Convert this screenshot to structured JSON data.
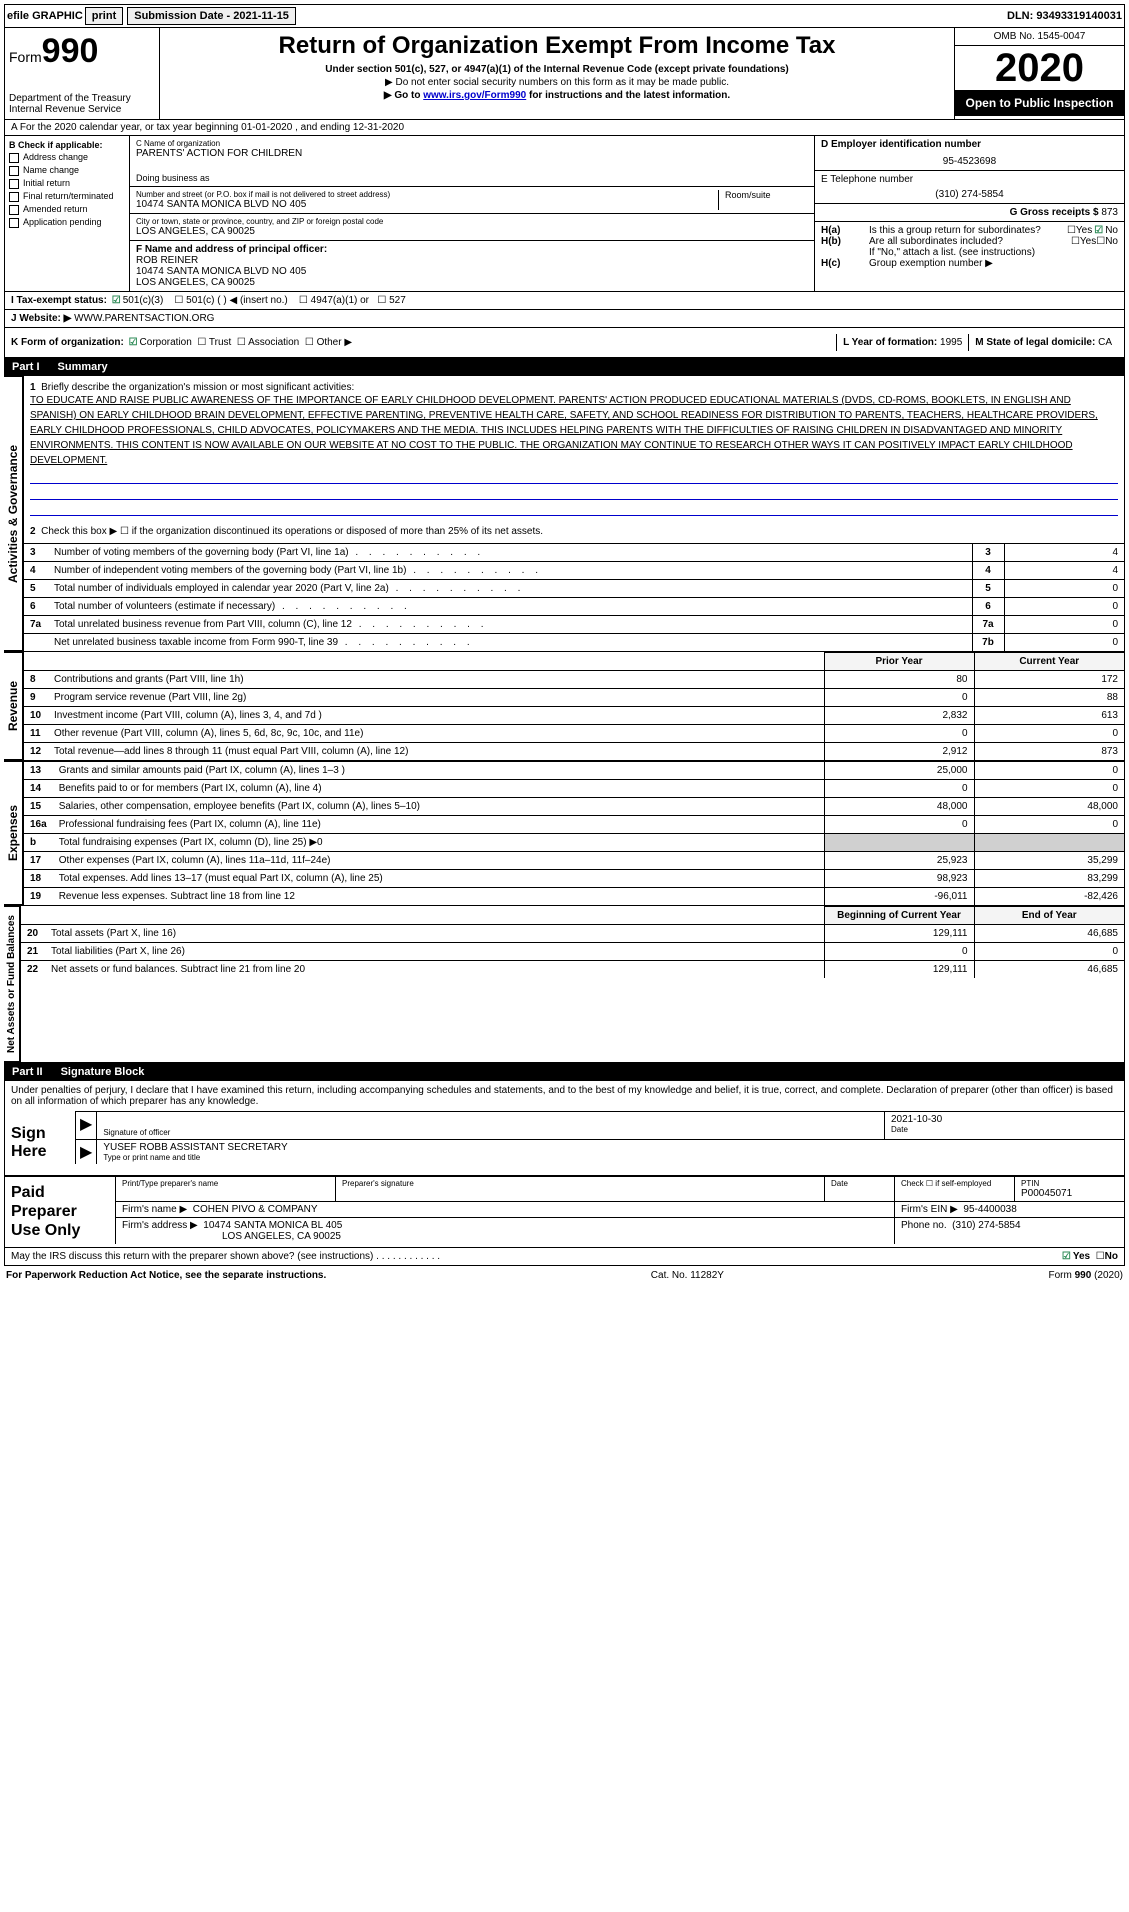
{
  "topbar": {
    "efile": "efile GRAPHIC",
    "print": "print",
    "sub_date_label": "Submission Date - 2021-11-15",
    "dln": "DLN: 93493319140031"
  },
  "header": {
    "form_prefix": "Form",
    "form_num": "990",
    "dept": "Department of the Treasury\nInternal Revenue Service",
    "title": "Return of Organization Exempt From Income Tax",
    "subtitle": "Under section 501(c), 527, or 4947(a)(1) of the Internal Revenue Code (except private foundations)",
    "instr1": "▶ Do not enter social security numbers on this form as it may be made public.",
    "instr2_pre": "▶ Go to ",
    "instr2_link": "www.irs.gov/Form990",
    "instr2_post": " for instructions and the latest information.",
    "omb": "OMB No. 1545-0047",
    "year": "2020",
    "open_public": "Open to Public Inspection"
  },
  "rowA": "A For the 2020 calendar year, or tax year beginning 01-01-2020     , and ending 12-31-2020",
  "colB": {
    "label": "B Check if applicable:",
    "items": [
      "Address change",
      "Name change",
      "Initial return",
      "Final return/terminated",
      "Amended return",
      "Application pending"
    ]
  },
  "colC": {
    "name_label": "C Name of organization",
    "name": "PARENTS' ACTION FOR CHILDREN",
    "dba_label": "Doing business as",
    "addr_label": "Number and street (or P.O. box if mail is not delivered to street address)",
    "addr": "10474 SANTA MONICA BLVD NO 405",
    "room_label": "Room/suite",
    "city_label": "City or town, state or province, country, and ZIP or foreign postal code",
    "city": "LOS ANGELES, CA  90025",
    "f_label": "F  Name and address of principal officer:",
    "f_name": "ROB REINER",
    "f_addr": "10474 SANTA MONICA BLVD NO 405",
    "f_city": "LOS ANGELES, CA  90025"
  },
  "colD": {
    "d_label": "D Employer identification number",
    "d_val": "95-4523698",
    "e_label": "E Telephone number",
    "e_val": "(310) 274-5854",
    "g_label": "G Gross receipts $",
    "g_val": "873",
    "ha_label": "Is this a group return for subordinates?",
    "hb_label": "Are all subordinates included?",
    "h_note": "If \"No,\" attach a list. (see instructions)",
    "hc_label": "Group exemption number ▶",
    "yes": "Yes",
    "no": "No"
  },
  "rowI": {
    "label": "I   Tax-exempt status:",
    "opts": [
      "501(c)(3)",
      "501(c) (  ) ◀ (insert no.)",
      "4947(a)(1) or",
      "527"
    ]
  },
  "rowJ": {
    "label": "J   Website: ▶",
    "val": "WWW.PARENTSACTION.ORG"
  },
  "rowK": {
    "label": "K Form of organization:",
    "opts": [
      "Corporation",
      "Trust",
      "Association",
      "Other ▶"
    ],
    "l_label": "L Year of formation:",
    "l_val": "1995",
    "m_label": "M State of legal domicile:",
    "m_val": "CA"
  },
  "part1": {
    "hdr_num": "Part I",
    "hdr_title": "Summary",
    "vtab1": "Activities & Governance",
    "vtab2": "Revenue",
    "vtab3": "Expenses",
    "vtab4": "Net Assets or Fund Balances",
    "line1_label": "Briefly describe the organization's mission or most significant activities:",
    "mission": "TO EDUCATE AND RAISE PUBLIC AWARENESS OF THE IMPORTANCE OF EARLY CHILDHOOD DEVELOPMENT. PARENTS' ACTION PRODUCED EDUCATIONAL MATERIALS (DVDS, CD-ROMS, BOOKLETS, IN ENGLISH AND SPANISH) ON EARLY CHILDHOOD BRAIN DEVELOPMENT, EFFECTIVE PARENTING, PREVENTIVE HEALTH CARE, SAFETY, AND SCHOOL READINESS FOR DISTRIBUTION TO PARENTS, TEACHERS, HEALTHCARE PROVIDERS, EARLY CHILDHOOD PROFESSIONALS, CHILD ADVOCATES, POLICYMAKERS AND THE MEDIA. THIS INCLUDES HELPING PARENTS WITH THE DIFFICULTIES OF RAISING CHILDREN IN DISADVANTAGED AND MINORITY ENVIRONMENTS. THIS CONTENT IS NOW AVAILABLE ON OUR WEBSITE AT NO COST TO THE PUBLIC. THE ORGANIZATION MAY CONTINUE TO RESEARCH OTHER WAYS IT CAN POSITIVELY IMPACT EARLY CHILDHOOD DEVELOPMENT.",
    "line2": "Check this box ▶ ☐  if the organization discontinued its operations or disposed of more than 25% of its net assets.",
    "gov_rows": [
      {
        "n": "3",
        "label": "Number of voting members of the governing body (Part VI, line 1a)",
        "val": "4"
      },
      {
        "n": "4",
        "label": "Number of independent voting members of the governing body (Part VI, line 1b)",
        "val": "4"
      },
      {
        "n": "5",
        "label": "Total number of individuals employed in calendar year 2020 (Part V, line 2a)",
        "val": "0"
      },
      {
        "n": "6",
        "label": "Total number of volunteers (estimate if necessary)",
        "val": "0"
      },
      {
        "n": "7a",
        "label": "Total unrelated business revenue from Part VIII, column (C), line 12",
        "val": "0"
      },
      {
        "n": "",
        "label": "Net unrelated business taxable income from Form 990-T, line 39",
        "nn": "7b",
        "val": "0"
      }
    ],
    "prior_hdr": "Prior Year",
    "current_hdr": "Current Year",
    "rev_rows": [
      {
        "n": "8",
        "label": "Contributions and grants (Part VIII, line 1h)",
        "py": "80",
        "cy": "172"
      },
      {
        "n": "9",
        "label": "Program service revenue (Part VIII, line 2g)",
        "py": "0",
        "cy": "88"
      },
      {
        "n": "10",
        "label": "Investment income (Part VIII, column (A), lines 3, 4, and 7d )",
        "py": "2,832",
        "cy": "613"
      },
      {
        "n": "11",
        "label": "Other revenue (Part VIII, column (A), lines 5, 6d, 8c, 9c, 10c, and 11e)",
        "py": "0",
        "cy": "0"
      },
      {
        "n": "12",
        "label": "Total revenue—add lines 8 through 11 (must equal Part VIII, column (A), line 12)",
        "py": "2,912",
        "cy": "873"
      }
    ],
    "exp_rows": [
      {
        "n": "13",
        "label": "Grants and similar amounts paid (Part IX, column (A), lines 1–3 )",
        "py": "25,000",
        "cy": "0"
      },
      {
        "n": "14",
        "label": "Benefits paid to or for members (Part IX, column (A), line 4)",
        "py": "0",
        "cy": "0"
      },
      {
        "n": "15",
        "label": "Salaries, other compensation, employee benefits (Part IX, column (A), lines 5–10)",
        "py": "48,000",
        "cy": "48,000"
      },
      {
        "n": "16a",
        "label": "Professional fundraising fees (Part IX, column (A), line 11e)",
        "py": "0",
        "cy": "0"
      },
      {
        "n": "b",
        "label": "Total fundraising expenses (Part IX, column (D), line 25) ▶0",
        "py": "",
        "cy": "",
        "shaded": true
      },
      {
        "n": "17",
        "label": "Other expenses (Part IX, column (A), lines 11a–11d, 11f–24e)",
        "py": "25,923",
        "cy": "35,299"
      },
      {
        "n": "18",
        "label": "Total expenses. Add lines 13–17 (must equal Part IX, column (A), line 25)",
        "py": "98,923",
        "cy": "83,299"
      },
      {
        "n": "19",
        "label": "Revenue less expenses. Subtract line 18 from line 12",
        "py": "-96,011",
        "cy": "-82,426"
      }
    ],
    "net_hdr_py": "Beginning of Current Year",
    "net_hdr_cy": "End of Year",
    "net_rows": [
      {
        "n": "20",
        "label": "Total assets (Part X, line 16)",
        "py": "129,111",
        "cy": "46,685"
      },
      {
        "n": "21",
        "label": "Total liabilities (Part X, line 26)",
        "py": "0",
        "cy": "0"
      },
      {
        "n": "22",
        "label": "Net assets or fund balances. Subtract line 21 from line 20",
        "py": "129,111",
        "cy": "46,685"
      }
    ]
  },
  "part2": {
    "hdr_num": "Part II",
    "hdr_title": "Signature Block",
    "penalty": "Under penalties of perjury, I declare that I have examined this return, including accompanying schedules and statements, and to the best of my knowledge and belief, it is true, correct, and complete. Declaration of preparer (other than officer) is based on all information of which preparer has any knowledge.",
    "sign_here": "Sign Here",
    "sig_officer": "Signature of officer",
    "sig_date_label": "Date",
    "sig_date": "2021-10-30",
    "officer_name": "YUSEF ROBB  ASSISTANT SECRETARY",
    "type_name": "Type or print name and title",
    "paid_label": "Paid Preparer Use Only",
    "prep_name_label": "Print/Type preparer's name",
    "prep_sig_label": "Preparer's signature",
    "date_label": "Date",
    "check_self": "Check ☐ if self-employed",
    "ptin_label": "PTIN",
    "ptin": "P00045071",
    "firm_name_label": "Firm's name    ▶",
    "firm_name": "COHEN PIVO & COMPANY",
    "firm_ein_label": "Firm's EIN ▶",
    "firm_ein": "95-4400038",
    "firm_addr_label": "Firm's address ▶",
    "firm_addr1": "10474 SANTA MONICA BL 405",
    "firm_addr2": "LOS ANGELES, CA  90025",
    "phone_label": "Phone no.",
    "phone": "(310) 274-5854",
    "discuss": "May the IRS discuss this return with the preparer shown above?  (see instructions)"
  },
  "footer": {
    "pra": "For Paperwork Reduction Act Notice, see the separate instructions.",
    "cat": "Cat. No. 11282Y",
    "form": "Form 990 (2020)"
  }
}
